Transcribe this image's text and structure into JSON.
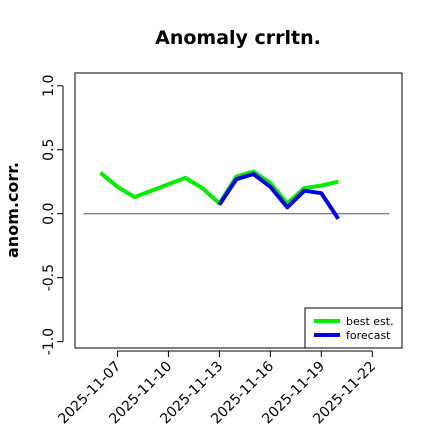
{
  "chart_data": {
    "type": "line",
    "title": "Anomaly crrltn.",
    "xlabel": "",
    "ylabel": "anom.corr.",
    "ylim": [
      -1.0,
      1.0
    ],
    "yticks": [
      "-1.0",
      "-0.5",
      "0.0",
      "0.5",
      "1.0"
    ],
    "xticks": [
      {
        "date": "2025-11-07",
        "label": "2025-11-07",
        "color": "#000000"
      },
      {
        "date": "2025-11-10",
        "label": "2025-11-10",
        "color": "#000000"
      },
      {
        "date": "2025-11-13",
        "label": "2025-11-13",
        "color": "#228B22"
      },
      {
        "date": "2025-11-16",
        "label": "2025-11-16",
        "color": "#000000"
      },
      {
        "date": "2025-11-19",
        "label": "2025-11-19",
        "color": "#000000"
      },
      {
        "date": "2025-11-22",
        "label": "2025-11-22",
        "color": "#000000"
      }
    ],
    "xlim": [
      "2025-11-04T12:00",
      "2025-11-23T18:00"
    ],
    "reference_line": {
      "y": 0.0,
      "x_from": "2025-11-05",
      "x_to": "2025-11-23",
      "color": "#555555"
    },
    "legend_position": "bottom-right",
    "series": [
      {
        "name": "best est.",
        "color": "#00ee00",
        "x": [
          "2025-11-06",
          "2025-11-07",
          "2025-11-08",
          "2025-11-09",
          "2025-11-10",
          "2025-11-11",
          "2025-11-12",
          "2025-11-13",
          "2025-11-14",
          "2025-11-15",
          "2025-11-16",
          "2025-11-17",
          "2025-11-18",
          "2025-11-19",
          "2025-11-20"
        ],
        "y": [
          0.32,
          0.21,
          0.13,
          0.18,
          0.23,
          0.28,
          0.2,
          0.08,
          0.29,
          0.33,
          0.24,
          0.08,
          0.2,
          0.22,
          0.25
        ]
      },
      {
        "name": "forecast",
        "color": "#0000ee",
        "x": [
          "2025-11-13",
          "2025-11-14",
          "2025-11-15",
          "2025-11-16",
          "2025-11-17",
          "2025-11-18",
          "2025-11-19",
          "2025-11-20"
        ],
        "y": [
          0.07,
          0.27,
          0.31,
          0.21,
          0.05,
          0.18,
          0.16,
          -0.04
        ]
      }
    ]
  }
}
